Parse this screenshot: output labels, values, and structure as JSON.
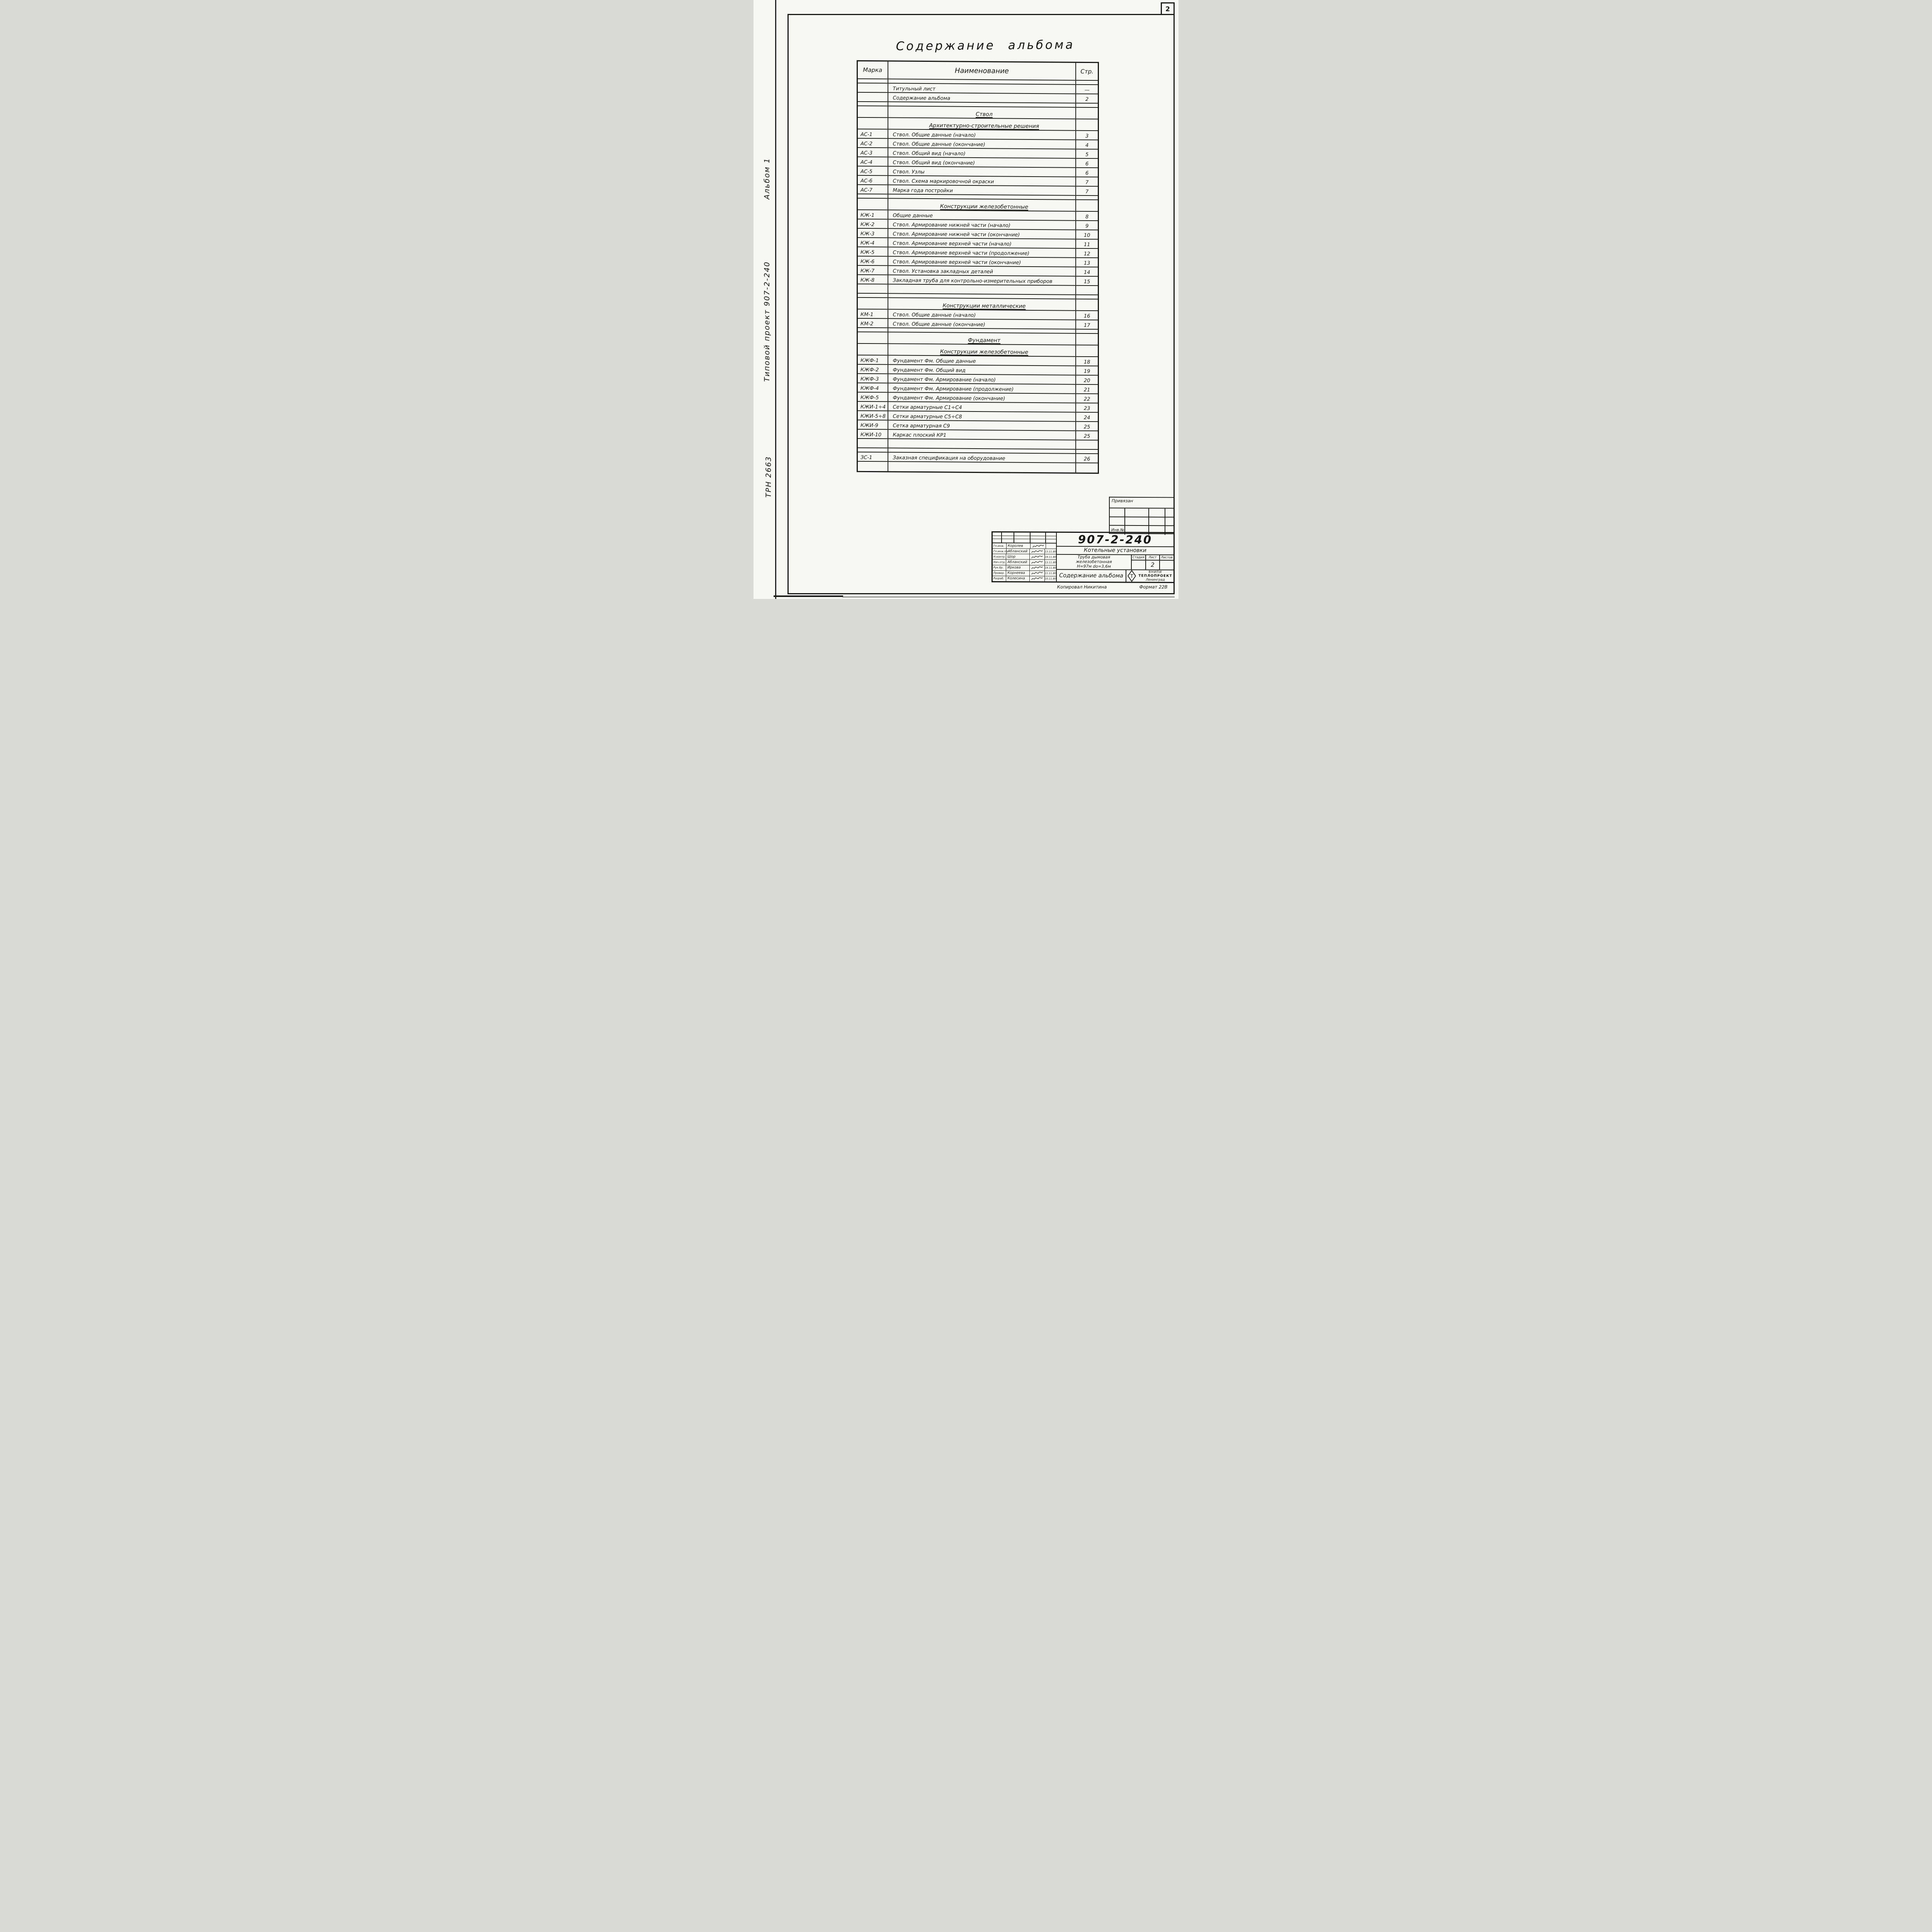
{
  "page": {
    "number": "2"
  },
  "margin": {
    "album": "Альбом 1",
    "project": "Типовой проект 907-2-240",
    "trn": "ТРН 2663"
  },
  "title": "Содержание альбома",
  "toc": {
    "headers": {
      "mark": "Марка",
      "name": "Наименование",
      "page": "Стр."
    },
    "rows": [
      {
        "t": "sp"
      },
      {
        "t": "item",
        "mark": "",
        "name": "Титульный лист",
        "page": "—"
      },
      {
        "t": "item",
        "mark": "",
        "name": "Содержание альбома",
        "page": "2"
      },
      {
        "t": "sp"
      },
      {
        "t": "sec",
        "name": "Ствол"
      },
      {
        "t": "sec",
        "name": "Архитектурно-строительные решения"
      },
      {
        "t": "item",
        "mark": "АС-1",
        "name": "Ствол. Общие данные (начало)",
        "page": "3"
      },
      {
        "t": "item",
        "mark": "АС-2",
        "name": "Ствол. Общие данные (окончание)",
        "page": "4"
      },
      {
        "t": "item",
        "mark": "АС-3",
        "name": "Ствол. Общий вид (начало)",
        "page": "5"
      },
      {
        "t": "item",
        "mark": "АС-4",
        "name": "Ствол. Общий вид (окончание)",
        "page": "6"
      },
      {
        "t": "item",
        "mark": "АС-5",
        "name": "Ствол. Узлы",
        "page": "6"
      },
      {
        "t": "item",
        "mark": "АС-6",
        "name": "Ствол. Схема маркировочной окраски",
        "page": "7"
      },
      {
        "t": "item",
        "mark": "АС-7",
        "name": "Марка года постройки",
        "page": "7"
      },
      {
        "t": "sp"
      },
      {
        "t": "sec",
        "name": "Конструкции железобетонные"
      },
      {
        "t": "item",
        "mark": "КЖ-1",
        "name": "Общие данные",
        "page": "8"
      },
      {
        "t": "item",
        "mark": "КЖ-2",
        "name": "Ствол. Армирование нижней части (начало)",
        "page": "9"
      },
      {
        "t": "item",
        "mark": "КЖ-3",
        "name": "Ствол. Армирование нижней части (окончание)",
        "page": "10"
      },
      {
        "t": "item",
        "mark": "КЖ-4",
        "name": "Ствол. Армирование верхней части (начало)",
        "page": "11"
      },
      {
        "t": "item",
        "mark": "КЖ-5",
        "name": "Ствол. Армирование верхней части (продолжение)",
        "page": "12"
      },
      {
        "t": "item",
        "mark": "КЖ-6",
        "name": "Ствол. Армирование верхней части (окончание)",
        "page": "13"
      },
      {
        "t": "item",
        "mark": "КЖ-7",
        "name": "Ствол. Установка закладных деталей",
        "page": "14"
      },
      {
        "t": "item",
        "mark": "КЖ-8",
        "name": "Закладная труба для контрольно-измерительных приборов",
        "page": "15"
      },
      {
        "t": "emp"
      },
      {
        "t": "sp"
      },
      {
        "t": "sec",
        "name": "Конструкции металлические"
      },
      {
        "t": "item",
        "mark": "КМ-1",
        "name": "Ствол. Общие данные (начало)",
        "page": "16"
      },
      {
        "t": "item",
        "mark": "КМ-2",
        "name": "Ствол. Общие данные (окончание)",
        "page": "17"
      },
      {
        "t": "sp"
      },
      {
        "t": "sec",
        "name": "Фундамент"
      },
      {
        "t": "sec",
        "name": "Конструкции железобетонные"
      },
      {
        "t": "item",
        "mark": "КЖФ-1",
        "name": "Фундамент Фм. Общие данные",
        "page": "18"
      },
      {
        "t": "item",
        "mark": "КЖФ-2",
        "name": "Фундамент Фм. Общий вид",
        "page": "19"
      },
      {
        "t": "item",
        "mark": "КЖФ-3",
        "name": "Фундамент Фм. Армирование (начало)",
        "page": "20"
      },
      {
        "t": "item",
        "mark": "КЖФ-4",
        "name": "Фундамент Фм. Армирование (продолжение)",
        "page": "21"
      },
      {
        "t": "item",
        "mark": "КЖФ-5",
        "name": "Фундамент Фм. Армирование (окончание)",
        "page": "22"
      },
      {
        "t": "item",
        "mark": "КЖИ-1÷4",
        "name": "Сетки арматурные С1÷С4",
        "page": "23"
      },
      {
        "t": "item",
        "mark": "КЖИ-5÷8",
        "name": "Сетки арматурные С5÷С8",
        "page": "24"
      },
      {
        "t": "item",
        "mark": "КЖИ-9",
        "name": "Сетка арматурная С9",
        "page": "25"
      },
      {
        "t": "item",
        "mark": "КЖИ-10",
        "name": "Каркас плоский КР1",
        "page": "25"
      },
      {
        "t": "emp"
      },
      {
        "t": "sp"
      },
      {
        "t": "item",
        "mark": "ЗС-1",
        "name": "Заказная спецификация на оборудование",
        "page": "26"
      },
      {
        "t": "emp"
      }
    ]
  },
  "binding": {
    "label": "Привязан",
    "inv_label": "Инв.№"
  },
  "stamp": {
    "project_number": "907-2-240",
    "series_title": "Котельные установки",
    "object_lines": [
      "Труба дымовая",
      "железобетонная",
      "Н=97м  dо=3,6м"
    ],
    "sheet_title": "Содержание альбома",
    "stage_label": "Стадия",
    "sheet_label": "Лист",
    "sheets_label": "Листов",
    "stage_value": "",
    "sheet_value": "2",
    "sheets_value": "",
    "org_lines": [
      "ВНИПИ",
      "ТЕПЛОПРОЕКТ",
      "Ленинград"
    ],
    "logo_letter": "Т",
    "signatures": [
      {
        "role": "Гл.инж.",
        "name": "Королев",
        "date": ""
      },
      {
        "role": "Гл.инж.пр.",
        "name": "Абланский",
        "date": "13.11.80"
      },
      {
        "role": "Н.контр.",
        "name": "Шор",
        "date": "19.11.80"
      },
      {
        "role": "Нач.отд.",
        "name": "Абланский",
        "date": "13.11.80"
      },
      {
        "role": "Рук.бр.",
        "name": "Иркова",
        "date": "19.11.80"
      },
      {
        "role": "Провер.",
        "name": "Корнеева",
        "date": "11.11.80"
      },
      {
        "role": "Разраб.",
        "name": "Колесина",
        "date": "10.11.80"
      }
    ],
    "copied_by": "Копировал Никитина",
    "format": "Формат 22В"
  }
}
